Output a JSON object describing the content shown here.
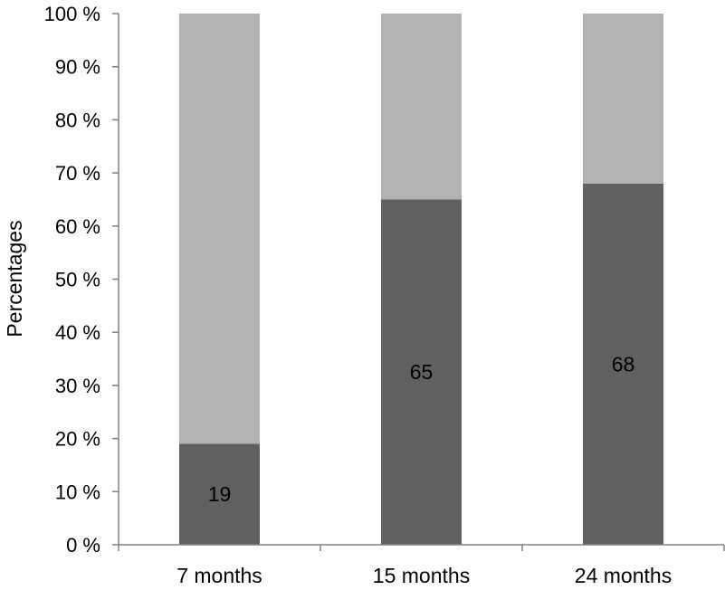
{
  "chart_data": {
    "type": "bar",
    "stacked": true,
    "categories": [
      "7 months",
      "15 months",
      "24 months"
    ],
    "series": [
      {
        "values": [
          19,
          65,
          68
        ],
        "color": "#606060",
        "data_labels": [
          "19",
          "65",
          "68"
        ]
      },
      {
        "values": [
          81,
          35,
          32
        ],
        "color": "#b2b2b2"
      }
    ],
    "ylabel": "Percentages",
    "ylim": [
      0,
      100
    ],
    "yticks": [
      0,
      10,
      20,
      30,
      40,
      50,
      60,
      70,
      80,
      90,
      100
    ],
    "ytick_labels": [
      "0 %",
      "10 %",
      "20 %",
      "30 %",
      "40 %",
      "50 %",
      "60 %",
      "70 %",
      "80 %",
      "90 %",
      "100 %"
    ],
    "grid": false,
    "legend": "none"
  }
}
